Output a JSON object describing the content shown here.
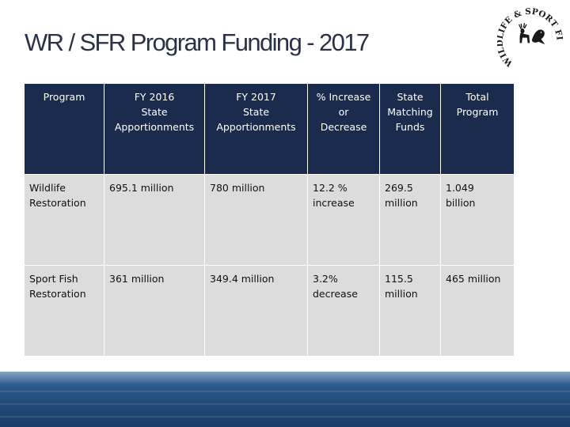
{
  "slide": {
    "title": "WR / SFR Program Funding - 2017",
    "logo_text": "WILDLIFE & SPORT FISH RESTORATION"
  },
  "table": {
    "headers": [
      [
        "Program"
      ],
      [
        "FY 2016",
        "State",
        "Apportionments"
      ],
      [
        "FY 2017",
        "State",
        "Apportionments"
      ],
      [
        "% Increase",
        "or",
        "Decrease"
      ],
      [
        "State",
        "Matching",
        "Funds"
      ],
      [
        "Total",
        "Program"
      ]
    ],
    "rows": [
      {
        "program": [
          "Wildlife",
          "Restoration"
        ],
        "fy2016": "695.1 million",
        "fy2017": "780 million",
        "change": [
          "12.2 %",
          "increase"
        ],
        "matching": [
          "269.5",
          "million"
        ],
        "total": [
          "1.049",
          "billion"
        ]
      },
      {
        "program": [
          "Sport Fish",
          "Restoration"
        ],
        "fy2016": "361 million",
        "fy2017": "349.4 million",
        "change": [
          "3.2%",
          "decrease"
        ],
        "matching": [
          "115.5",
          "million"
        ],
        "total": [
          "465 million"
        ]
      }
    ]
  },
  "colors": {
    "header_bg": "#1a2b4d",
    "cell_bg": "#dcdcdc",
    "change_text": "#ff1a1a",
    "title_text": "#2a3346"
  }
}
